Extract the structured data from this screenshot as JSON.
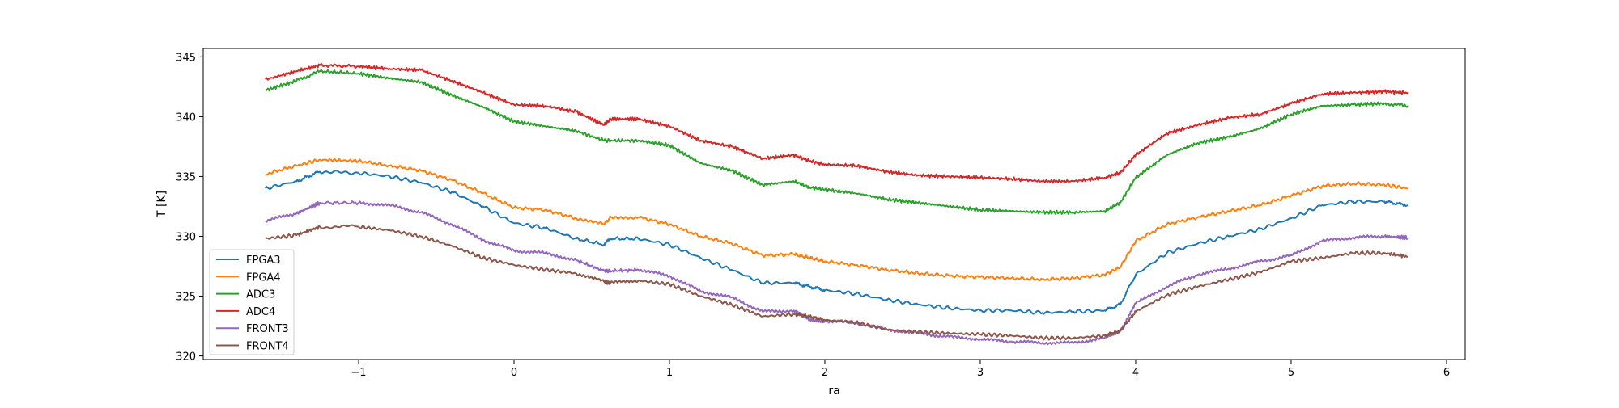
{
  "chart_data": {
    "type": "line",
    "title": "",
    "xlabel": "ra",
    "ylabel": "T [K]",
    "xlim": [
      -2.0,
      6.12
    ],
    "ylim": [
      319.7,
      345.7
    ],
    "xticks": [
      -1,
      0,
      1,
      2,
      3,
      4,
      5,
      6
    ],
    "xtick_labels": [
      "−1",
      "0",
      "1",
      "2",
      "3",
      "4",
      "5",
      "6"
    ],
    "yticks": [
      320,
      325,
      330,
      335,
      340,
      345
    ],
    "ytick_labels": [
      "320",
      "325",
      "330",
      "335",
      "340",
      "345"
    ],
    "grid": false,
    "legend_position": "lower-left",
    "series": [
      {
        "name": "FPGA3",
        "color": "#1f77b4",
        "x": [
          -1.6,
          -1.4,
          -1.25,
          -1.0,
          -0.8,
          -0.6,
          -0.4,
          -0.2,
          0.0,
          0.2,
          0.4,
          0.58,
          0.62,
          0.8,
          1.0,
          1.2,
          1.4,
          1.6,
          1.8,
          1.9,
          2.0,
          2.2,
          2.4,
          2.6,
          2.8,
          3.0,
          3.2,
          3.4,
          3.6,
          3.8,
          3.9,
          4.0,
          4.2,
          4.4,
          4.6,
          4.8,
          5.0,
          5.2,
          5.4,
          5.6,
          5.75
        ],
        "y": [
          334.0,
          334.6,
          335.4,
          335.3,
          335.0,
          334.5,
          333.7,
          332.5,
          331.1,
          330.7,
          329.8,
          329.3,
          329.8,
          329.8,
          329.3,
          328.2,
          327.2,
          326.1,
          326.1,
          325.8,
          325.5,
          325.2,
          324.7,
          324.3,
          324.0,
          323.8,
          323.8,
          323.6,
          323.7,
          323.8,
          324.3,
          326.8,
          328.6,
          329.4,
          330.0,
          330.6,
          331.5,
          332.6,
          332.9,
          332.9,
          332.6
        ]
      },
      {
        "name": "FPGA4",
        "color": "#ff7f0e",
        "x": [
          -1.6,
          -1.4,
          -1.25,
          -1.0,
          -0.8,
          -0.6,
          -0.4,
          -0.2,
          0.0,
          0.2,
          0.4,
          0.58,
          0.62,
          0.8,
          1.0,
          1.2,
          1.4,
          1.6,
          1.8,
          1.9,
          2.0,
          2.2,
          2.4,
          2.6,
          2.8,
          3.0,
          3.2,
          3.4,
          3.6,
          3.8,
          3.9,
          4.0,
          4.2,
          4.4,
          4.6,
          4.8,
          5.0,
          5.2,
          5.4,
          5.6,
          5.75
        ],
        "y": [
          335.2,
          335.9,
          336.4,
          336.3,
          335.9,
          335.5,
          334.7,
          333.6,
          332.4,
          332.2,
          331.5,
          331.0,
          331.6,
          331.6,
          331.0,
          330.0,
          329.4,
          328.4,
          328.5,
          328.2,
          327.9,
          327.6,
          327.2,
          326.9,
          326.7,
          326.6,
          326.5,
          326.4,
          326.5,
          326.8,
          327.4,
          329.6,
          331.0,
          331.6,
          332.1,
          332.6,
          333.4,
          334.2,
          334.4,
          334.3,
          334.0
        ]
      },
      {
        "name": "ADC3",
        "color": "#2ca02c",
        "x": [
          -1.6,
          -1.4,
          -1.25,
          -1.0,
          -0.8,
          -0.6,
          -0.4,
          -0.2,
          0.0,
          0.2,
          0.4,
          0.58,
          0.62,
          0.8,
          1.0,
          1.2,
          1.4,
          1.6,
          1.8,
          1.9,
          2.0,
          2.2,
          2.4,
          2.6,
          2.8,
          3.0,
          3.2,
          3.4,
          3.6,
          3.8,
          3.9,
          4.0,
          4.2,
          4.4,
          4.6,
          4.8,
          5.0,
          5.2,
          5.4,
          5.6,
          5.75
        ],
        "y": [
          342.2,
          343.0,
          343.8,
          343.6,
          343.2,
          342.9,
          341.8,
          340.8,
          339.6,
          339.2,
          338.8,
          338.0,
          338.0,
          338.0,
          337.6,
          336.1,
          335.5,
          334.3,
          334.6,
          334.1,
          333.9,
          333.6,
          333.1,
          332.8,
          332.5,
          332.2,
          332.1,
          332.0,
          332.0,
          332.1,
          332.8,
          334.9,
          336.8,
          337.8,
          338.3,
          339.0,
          340.2,
          340.9,
          341.0,
          341.1,
          340.9
        ]
      },
      {
        "name": "ADC4",
        "color": "#d62728",
        "x": [
          -1.6,
          -1.4,
          -1.25,
          -1.0,
          -0.8,
          -0.6,
          -0.4,
          -0.2,
          0.0,
          0.2,
          0.4,
          0.58,
          0.62,
          0.8,
          1.0,
          1.2,
          1.4,
          1.6,
          1.8,
          1.9,
          2.0,
          2.2,
          2.4,
          2.6,
          2.8,
          3.0,
          3.2,
          3.4,
          3.6,
          3.8,
          3.9,
          4.0,
          4.2,
          4.4,
          4.6,
          4.8,
          5.0,
          5.2,
          5.4,
          5.6,
          5.75
        ],
        "y": [
          343.1,
          343.8,
          344.3,
          344.2,
          344.0,
          343.9,
          343.0,
          342.0,
          341.0,
          340.9,
          340.4,
          339.3,
          339.8,
          339.8,
          339.2,
          338.0,
          337.5,
          336.5,
          336.8,
          336.3,
          336.0,
          335.9,
          335.4,
          335.1,
          335.0,
          334.9,
          334.8,
          334.6,
          334.6,
          334.9,
          335.3,
          336.8,
          338.6,
          339.3,
          339.9,
          340.2,
          341.1,
          341.9,
          342.0,
          342.1,
          342.0
        ]
      },
      {
        "name": "FRONT3",
        "color": "#9467bd",
        "x": [
          -1.6,
          -1.4,
          -1.25,
          -1.0,
          -0.8,
          -0.6,
          -0.4,
          -0.2,
          0.0,
          0.2,
          0.4,
          0.58,
          0.62,
          0.8,
          1.0,
          1.2,
          1.4,
          1.6,
          1.8,
          1.9,
          2.0,
          2.2,
          2.4,
          2.6,
          2.8,
          3.0,
          3.2,
          3.4,
          3.6,
          3.8,
          3.9,
          4.0,
          4.2,
          4.4,
          4.6,
          4.8,
          5.0,
          5.2,
          5.4,
          5.6,
          5.75
        ],
        "y": [
          331.3,
          331.9,
          332.8,
          332.8,
          332.6,
          332.0,
          331.0,
          329.7,
          328.8,
          328.6,
          328.0,
          327.1,
          327.1,
          327.2,
          326.7,
          325.4,
          324.9,
          323.7,
          323.8,
          323.0,
          322.9,
          322.8,
          322.2,
          321.9,
          321.6,
          321.4,
          321.2,
          321.1,
          321.1,
          321.5,
          322.1,
          324.4,
          325.8,
          326.8,
          327.3,
          327.9,
          328.4,
          329.6,
          329.9,
          330.0,
          329.9
        ]
      },
      {
        "name": "FRONT4",
        "color": "#8c564b",
        "x": [
          -1.6,
          -1.4,
          -1.25,
          -1.0,
          -0.8,
          -0.6,
          -0.4,
          -0.2,
          0.0,
          0.2,
          0.4,
          0.58,
          0.62,
          0.8,
          1.0,
          1.2,
          1.4,
          1.6,
          1.8,
          1.9,
          2.0,
          2.2,
          2.4,
          2.6,
          2.8,
          3.0,
          3.2,
          3.4,
          3.6,
          3.8,
          3.9,
          4.0,
          4.2,
          4.4,
          4.6,
          4.8,
          5.0,
          5.2,
          5.4,
          5.6,
          5.75
        ],
        "y": [
          329.8,
          330.1,
          330.8,
          330.8,
          330.5,
          330.0,
          329.2,
          328.2,
          327.6,
          327.2,
          326.9,
          326.2,
          326.1,
          326.3,
          326.0,
          325.0,
          324.3,
          323.3,
          323.5,
          323.3,
          323.0,
          322.8,
          322.2,
          322.0,
          321.9,
          321.8,
          321.7,
          321.5,
          321.5,
          321.7,
          322.1,
          323.7,
          325.1,
          325.8,
          326.4,
          327.0,
          327.9,
          328.2,
          328.6,
          328.6,
          328.3
        ]
      }
    ]
  }
}
